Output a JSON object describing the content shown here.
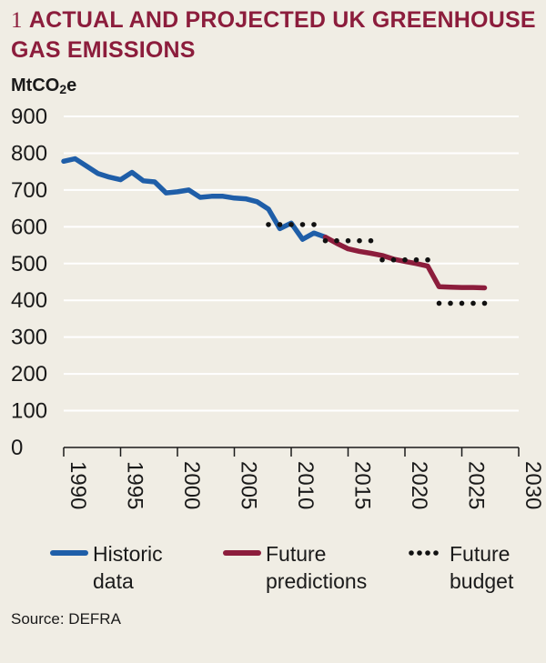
{
  "title": {
    "number": "1",
    "text": "ACTUAL AND PROJECTED UK GREENHOUSE GAS EMISSIONS"
  },
  "unit": {
    "main": "MtCO",
    "sub": "2",
    "suffix": "e"
  },
  "source": "Source: DEFRA",
  "colors": {
    "historic": "#1f5ea8",
    "future": "#8c1d3c",
    "budget": "#111111",
    "title": "#8c1d3c",
    "background": "#f0ede4"
  },
  "chart_data": {
    "type": "line",
    "title": "ACTUAL AND PROJECTED UK GREENHOUSE GAS EMISSIONS",
    "ylabel": "MtCO2e",
    "xlabel": "",
    "ylim": [
      0,
      900
    ],
    "xlim": [
      1990,
      2030
    ],
    "yticks": [
      0,
      100,
      200,
      300,
      400,
      500,
      600,
      700,
      800,
      900
    ],
    "xticks": [
      1990,
      1995,
      2000,
      2005,
      2010,
      2015,
      2020,
      2025,
      2030
    ],
    "grid": true,
    "series": [
      {
        "name": "Historic data",
        "style": "solid",
        "color": "#1f5ea8",
        "x": [
          1990,
          1991,
          1992,
          1993,
          1994,
          1995,
          1996,
          1997,
          1998,
          1999,
          2000,
          2001,
          2002,
          2003,
          2004,
          2005,
          2006,
          2007,
          2008,
          2009,
          2010,
          2011,
          2012,
          2013
        ],
        "y": [
          778,
          785,
          765,
          745,
          735,
          728,
          748,
          725,
          722,
          692,
          695,
          700,
          680,
          683,
          683,
          678,
          676,
          668,
          648,
          595,
          610,
          566,
          583,
          572
        ]
      },
      {
        "name": "Future predictions",
        "style": "solid",
        "color": "#8c1d3c",
        "x": [
          2013,
          2014,
          2015,
          2016,
          2017,
          2018,
          2019,
          2020,
          2021,
          2022,
          2023,
          2024,
          2025,
          2026,
          2027
        ],
        "y": [
          572,
          555,
          540,
          533,
          528,
          522,
          512,
          506,
          500,
          493,
          437,
          436,
          435,
          435,
          434
        ]
      },
      {
        "name": "Future budget",
        "style": "dotted",
        "color": "#111111",
        "segments": [
          {
            "x_start": 2008,
            "x_end": 2012,
            "y": 606
          },
          {
            "x_start": 2013,
            "x_end": 2017,
            "y": 562
          },
          {
            "x_start": 2018,
            "x_end": 2022,
            "y": 510
          },
          {
            "x_start": 2023,
            "x_end": 2027,
            "y": 392
          }
        ]
      }
    ],
    "legend": [
      {
        "label_line1": "Historic",
        "label_line2": "data",
        "style": "solid",
        "color": "#1f5ea8"
      },
      {
        "label_line1": "Future",
        "label_line2": "predictions",
        "style": "solid",
        "color": "#8c1d3c"
      },
      {
        "label_line1": "Future",
        "label_line2": "budget",
        "style": "dotted",
        "color": "#111111"
      }
    ],
    "legend_position": "bottom"
  }
}
